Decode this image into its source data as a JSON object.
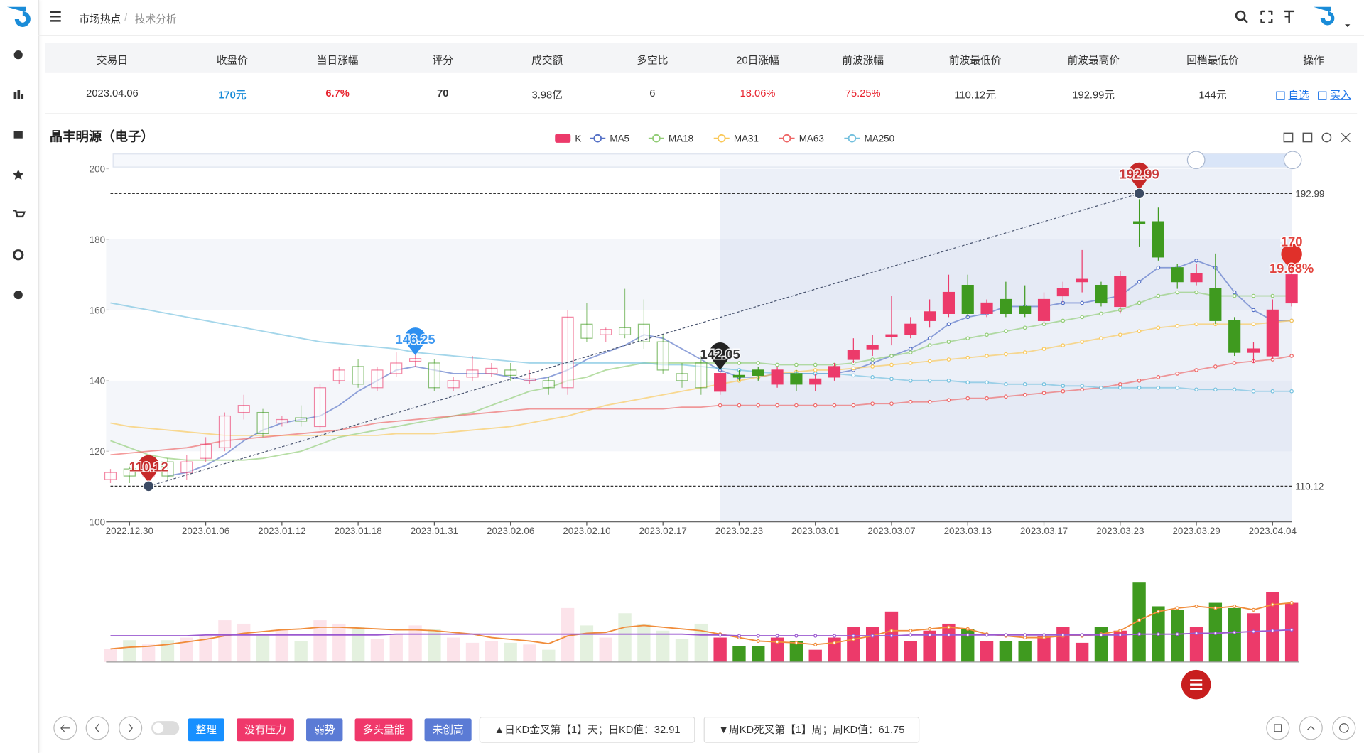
{
  "header": {
    "breadcrumb": [
      "市场热点",
      "技术分析"
    ],
    "breadcrumb_separator": "/"
  },
  "table": {
    "columns": [
      "交易日",
      "收盘价",
      "当日涨幅",
      "评分",
      "成交额",
      "多空比",
      "20日涨幅",
      "前波涨幅",
      "前波最低价",
      "前波最高价",
      "回档最低价",
      "操作"
    ],
    "rows": [
      [
        "2023.04.06",
        "170元",
        "6.7%",
        "70",
        "3.98亿",
        "6",
        "18.06%",
        "75.25%",
        "110.12元",
        "192.99元",
        "144元",
        [
          "自选",
          "买入"
        ]
      ]
    ]
  },
  "chart_data": {
    "type": "candlestick",
    "title": "晶丰明源（电子）",
    "candle_name": "K",
    "up_color": "#ec3a6a",
    "down_color": "#3f9a1f",
    "categories": [
      null,
      "2022.12.30",
      null,
      null,
      null,
      "2023.01.06",
      null,
      null,
      null,
      "2023.01.12",
      null,
      null,
      null,
      "2023.01.18",
      null,
      null,
      null,
      "2023.01.31",
      null,
      null,
      null,
      "2023.02.06",
      null,
      null,
      null,
      "2023.02.10",
      null,
      null,
      null,
      "2023.02.17",
      null,
      null,
      null,
      "2023.02.23",
      null,
      null,
      null,
      "2023.03.01",
      null,
      null,
      null,
      "2023.03.07",
      null,
      null,
      null,
      "2023.03.13",
      null,
      null,
      null,
      "2023.03.17",
      null,
      null,
      null,
      "2023.03.23",
      null,
      null,
      null,
      "2023.03.29",
      null,
      null,
      null,
      "2023.04.04",
      null
    ],
    "open": [
      112,
      115,
      113,
      117,
      114,
      118,
      121,
      131,
      131,
      128,
      129.5,
      127,
      140,
      144,
      138,
      142,
      145.5,
      145,
      138,
      141,
      142,
      143,
      140,
      140,
      138,
      156,
      153,
      155,
      156,
      151,
      142,
      145,
      137,
      141.5,
      143,
      139,
      142,
      139,
      141,
      146,
      149,
      152.5,
      153,
      157,
      159,
      167,
      159,
      163,
      161,
      157,
      164,
      168,
      167,
      161,
      185,
      185,
      172,
      168,
      166,
      157,
      148,
      147,
      162
    ],
    "high": [
      115,
      116,
      117,
      118,
      119,
      124,
      131,
      136,
      132,
      130,
      133,
      139,
      144,
      146,
      144,
      148,
      148,
      146,
      141,
      147,
      145,
      145,
      143,
      141,
      160,
      162,
      155,
      166,
      163,
      153,
      145,
      147,
      143,
      143,
      144,
      144,
      143,
      142,
      145,
      152,
      153,
      164,
      158,
      163,
      170,
      170,
      163,
      168,
      167,
      165,
      168,
      177,
      168,
      171,
      192.99,
      189,
      173,
      173,
      176,
      158,
      151,
      163,
      172
    ],
    "low": [
      111,
      111,
      110.12,
      112,
      112,
      117,
      120,
      129,
      124,
      127,
      127,
      126,
      139,
      138,
      137,
      141,
      144,
      137,
      137,
      140,
      141,
      140,
      139,
      136,
      136,
      151,
      151,
      152,
      149,
      142,
      138,
      136,
      136,
      140,
      140,
      138,
      137,
      137,
      140,
      145,
      147,
      150,
      152,
      155,
      158,
      158,
      158,
      158,
      158,
      156,
      162,
      165,
      161,
      159,
      178,
      174,
      166,
      167,
      156,
      147,
      145,
      146,
      161
    ],
    "close": [
      114,
      113,
      115,
      113,
      117,
      122,
      130,
      133,
      125,
      129,
      128.5,
      138,
      143,
      139,
      143,
      145,
      146.25,
      138,
      140,
      143,
      143.5,
      141.5,
      140.5,
      138,
      158,
      152,
      154.5,
      153,
      151,
      143,
      140,
      138,
      142.05,
      141,
      141.5,
      143,
      139,
      140.5,
      144,
      148.5,
      150,
      153,
      156,
      159.5,
      165,
      159,
      162,
      159,
      159,
      163,
      166,
      168.7,
      162,
      169.5,
      184.5,
      175,
      168,
      170.4,
      157,
      148,
      149,
      160,
      170
    ],
    "series": [
      {
        "name": "MA5",
        "color": "#5470c6",
        "values": [
          null,
          null,
          null,
          113,
          114,
          116,
          119,
          123,
          126,
          128,
          129,
          130,
          133,
          137,
          140,
          143,
          144,
          143,
          142,
          142,
          142,
          141,
          140,
          141,
          143,
          146,
          148,
          150,
          153,
          152,
          149,
          146,
          143,
          141,
          141,
          142,
          142,
          142,
          142,
          143,
          145,
          147,
          149,
          152,
          156,
          158,
          159,
          161,
          161,
          161,
          162,
          162,
          163,
          164,
          168,
          172,
          172,
          174,
          172,
          165,
          160,
          157,
          157
        ]
      },
      {
        "name": "MA18",
        "color": "#91cc75",
        "values": [
          123,
          121,
          119,
          118,
          117.5,
          117.5,
          117.5,
          117.5,
          118,
          119,
          120,
          122,
          124,
          125,
          126,
          127,
          128,
          129,
          130,
          131,
          133,
          135,
          137,
          138,
          140,
          141,
          143,
          144,
          145,
          145,
          145,
          145,
          145,
          145,
          145,
          144.5,
          144.5,
          144.5,
          144.5,
          145,
          146,
          147,
          148,
          150,
          151,
          152,
          153,
          154,
          155,
          156,
          157,
          158,
          159,
          160,
          162,
          164,
          165,
          165,
          164,
          164,
          164,
          164,
          164
        ]
      },
      {
        "name": "MA31",
        "color": "#fac858",
        "values": [
          128,
          127,
          126.5,
          126,
          125.5,
          125,
          124.5,
          124.5,
          124.5,
          124.5,
          124.5,
          124.5,
          124.5,
          124.5,
          124.5,
          125,
          125,
          125,
          125.5,
          126,
          126.5,
          127,
          128,
          129,
          130,
          131.5,
          133,
          134,
          135,
          136,
          137,
          138,
          139,
          140,
          141,
          142,
          142.5,
          143,
          143,
          143.5,
          144,
          144.5,
          145,
          145.5,
          146,
          146.5,
          147,
          147.5,
          148,
          149,
          150,
          151,
          152,
          153,
          154,
          155,
          155.5,
          156,
          156,
          156,
          156,
          156.5,
          157
        ]
      },
      {
        "name": "MA63",
        "color": "#ee6666",
        "values": [
          119,
          119.5,
          120,
          120.5,
          121,
          122,
          123,
          123.5,
          124,
          124.5,
          125,
          125.5,
          126,
          127,
          128,
          128.5,
          129,
          129.5,
          130,
          130.5,
          131,
          131.5,
          132,
          132,
          132,
          132,
          132,
          132,
          132,
          132,
          132.5,
          132.5,
          133,
          133,
          133,
          133,
          133,
          133,
          133,
          133,
          133.5,
          133.5,
          134,
          134,
          134.5,
          135,
          135,
          135.5,
          136,
          136.5,
          137,
          137.5,
          138,
          139,
          140,
          141,
          142,
          143,
          144,
          145,
          145.5,
          146,
          147
        ]
      },
      {
        "name": "MA250",
        "color": "#73c0de",
        "values": [
          162,
          161,
          160,
          159,
          158,
          157,
          156,
          155,
          154,
          153,
          152,
          151,
          150.5,
          150,
          149.5,
          149,
          148,
          147.5,
          147,
          146.5,
          146,
          145.5,
          145,
          145,
          145,
          145,
          145,
          145,
          145,
          144.5,
          144.5,
          144,
          143.5,
          143,
          142.5,
          142,
          142,
          142,
          142,
          141.5,
          141,
          140.5,
          140,
          140,
          140,
          139.5,
          139.5,
          139,
          139,
          139,
          138.5,
          138.5,
          138,
          138,
          138,
          138,
          138,
          137.5,
          137.5,
          137.5,
          137,
          137,
          137
        ]
      }
    ],
    "ylim": [
      100,
      200
    ],
    "yticks": [
      100,
      120,
      140,
      160,
      180,
      200
    ],
    "split_area": true,
    "ref_lines": [
      192.99,
      110.12
    ],
    "trend_line": true,
    "markers": [
      {
        "value": 192.99,
        "color": "#c62828",
        "shape": "pin-dot"
      },
      {
        "value": 110.12,
        "color": "#c62828",
        "shape": "pin-dot"
      },
      {
        "value": 146.25,
        "color": "#2e90f0",
        "shape": "pin"
      },
      {
        "value": 142.05,
        "color": "#222222",
        "shape": "pin"
      },
      {
        "value": 170,
        "color": "#e0302a",
        "shape": "pin",
        "change_label": "19.68%"
      }
    ],
    "volume": [
      15,
      25,
      20,
      25,
      28,
      30,
      48,
      44,
      32,
      38,
      24,
      48,
      44,
      40,
      26,
      32,
      42,
      38,
      28,
      22,
      24,
      22,
      20,
      14,
      62,
      42,
      28,
      56,
      44,
      36,
      26,
      44,
      28,
      18,
      18,
      28,
      24,
      14,
      28,
      40,
      40,
      58,
      24,
      36,
      44,
      38,
      24,
      24,
      24,
      30,
      40,
      22,
      40,
      36,
      92,
      64,
      60,
      40,
      68,
      62,
      56,
      80,
      68
    ],
    "volume_lines": [
      {
        "color": "#f08c3a",
        "values": [
          15,
          17,
          18,
          20,
          23,
          26,
          30,
          33,
          35,
          37,
          38,
          40,
          40,
          39,
          38,
          37,
          37,
          36,
          34,
          32,
          28,
          26,
          24,
          21,
          30,
          33,
          34,
          40,
          42,
          40,
          38,
          36,
          32,
          28,
          24,
          23,
          22,
          20,
          22,
          26,
          30,
          36,
          36,
          38,
          40,
          38,
          32,
          30,
          28,
          28,
          30,
          30,
          32,
          36,
          48,
          58,
          62,
          64,
          62,
          64,
          60,
          66,
          68
        ]
      },
      {
        "color": "#9b59d0",
        "values": [
          30,
          30,
          30,
          30,
          30,
          31,
          31,
          31,
          31,
          31,
          31,
          31,
          31,
          31,
          31,
          32,
          32,
          32,
          32,
          32,
          32,
          32,
          32,
          32,
          32,
          32,
          32,
          32,
          32,
          32,
          32,
          31,
          31,
          30,
          30,
          30,
          30,
          30,
          30,
          30,
          30,
          30,
          31,
          31,
          31,
          31,
          31,
          31,
          31,
          31,
          31,
          31,
          31,
          31,
          32,
          32,
          32,
          33,
          33,
          34,
          35,
          36,
          37
        ]
      }
    ]
  },
  "footer": {
    "tags": [
      {
        "label": "整理",
        "color": "#1890ff"
      },
      {
        "label": "没有压力",
        "color": "#f0386b"
      },
      {
        "label": "弱势",
        "color": "#5b7bd5"
      },
      {
        "label": "多头量能",
        "color": "#f0386b"
      },
      {
        "label": "未创高",
        "color": "#5b7bd5"
      }
    ],
    "signals": [
      "▲日KD金叉第【1】天；日KD值：32.91",
      "▼周KD死叉第【1】周；周KD值：61.75"
    ]
  }
}
